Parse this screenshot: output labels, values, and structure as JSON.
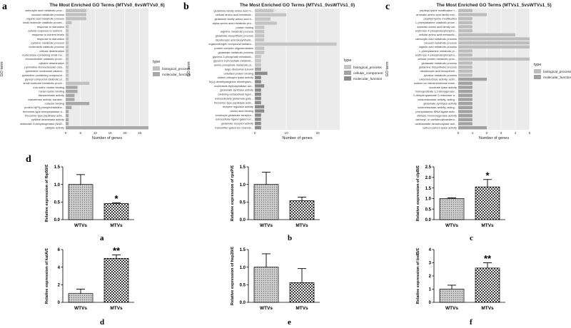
{
  "panel_labels": {
    "a": "a",
    "b": "b",
    "c": "c",
    "d": "d"
  },
  "sub_labels": [
    "a",
    "b",
    "c",
    "d",
    "e",
    "f"
  ],
  "chart_data": [
    {
      "type": "bar",
      "orientation": "horizontal",
      "title": "The Most Enriched GO Terms (MTVs0_6vsWTVs0_6)",
      "xlabel": "Number of genes",
      "ylabel": "GO term",
      "xlim": [
        0,
        28
      ],
      "xticks": [
        0,
        5,
        10,
        15,
        20,
        25
      ],
      "legend": {
        "title": "type",
        "placement": "right",
        "entries": [
          "biological_process",
          "molecular_function"
        ]
      },
      "categories": [
        "carboxylic acid metabolic proc...",
        "oxoacid metabolic process",
        "organic acid metabolic process",
        "small molecule catabolic proces...",
        "response to starvation",
        "cellular response to nutrient...",
        "response to nutrient levels",
        "response to starvation",
        "cysteine metabolic process",
        "nucleoside catabolic process",
        "cellular deamination",
        "nucleobase-containing small mo...",
        "ribonucleotide catabolic proce...",
        "cytidine deamination",
        "pyrimidine ribonucleoside cata...",
        "pyrimidine nucleoside catabol...",
        "pyrimidine-containing compound...",
        "glyoxyl compound catabolic pr...",
        "small molecule metabolic proce...",
        "iron-sulfur cluster binding",
        "metal cluster binding",
        "transaminase activity",
        "transferase activity, transfer...",
        "cofactor binding",
        "protein-N(PI)-phosphohistidine...",
        "threonine-type endopeptidase a...",
        "threonine-type peptidase activ...",
        "cytidine deaminase activity",
        "shikimate 3-dehydrogenase (NAD...",
        "catalytic activity"
      ],
      "values": [
        7,
        7,
        7,
        2,
        1,
        1,
        1,
        1,
        1,
        1,
        1,
        1,
        1,
        1,
        1,
        1,
        1,
        1,
        8,
        4,
        4,
        3,
        3,
        8,
        2,
        1,
        1,
        1,
        1,
        28
      ],
      "types": [
        "biological_process",
        "biological_process",
        "biological_process",
        "biological_process",
        "biological_process",
        "biological_process",
        "biological_process",
        "biological_process",
        "biological_process",
        "biological_process",
        "biological_process",
        "biological_process",
        "biological_process",
        "biological_process",
        "biological_process",
        "biological_process",
        "biological_process",
        "biological_process",
        "biological_process",
        "molecular_function",
        "molecular_function",
        "molecular_function",
        "molecular_function",
        "molecular_function",
        "molecular_function",
        "molecular_function",
        "molecular_function",
        "molecular_function",
        "molecular_function",
        "molecular_function"
      ],
      "colors": {
        "biological_process": "#c0c0c0",
        "molecular_function": "#a8a8a8"
      }
    },
    {
      "type": "bar",
      "orientation": "horizontal",
      "title": "The Most Enriched GO Terms (MTVs1_0vsWTVs1_0)",
      "xlabel": "Number of genes",
      "ylabel": "GO term",
      "xlim": [
        0,
        27
      ],
      "xticks": [
        0,
        10,
        20
      ],
      "legend": {
        "title": "type",
        "placement": "right",
        "entries": [
          "biological_process",
          "cellular_component",
          "molecular_function"
        ]
      },
      "categories": [
        "glutamine family amino acid m...",
        "cellular amino acid metabolic...",
        "glutamine family amino acid b...",
        "alpha-amino acid metabolic pro...",
        "protein folding",
        "arginine metabolic process",
        "glutamate biosynthetic process",
        "dicarboxylic acid biosynthetic...",
        "organonitrogen compound metabo...",
        "protein complex oligomerization",
        "glutamate metabolic process",
        "glycerol-3-phosphate metabolic...",
        "glycerol-3-phosphate catabolic...",
        "amine phosphate metabolic pr...",
        "large ribosomal subunit",
        "unfolded protein binding",
        "carbon-nitrogen lyase activity",
        "N(ω)-dimethylarginine dimethylam...",
        "nucleoside-triphosphatase act...",
        "glutamate synthase activity",
        "oxidizing extracellular ligan...",
        "extracellularly glutamate-gate...",
        "threonine-type peptidase activ...",
        "enzyme regulator activity",
        "amino acid binding",
        "ionotropic glutamate receptor...",
        "extracellular ligand-gated ion...",
        "glutamate receptor activity",
        "transmitter-gated ion channel..."
      ],
      "values": [
        6,
        10,
        5,
        7,
        3,
        3,
        3,
        3,
        26,
        3,
        3,
        2,
        2,
        2,
        2,
        4,
        2,
        2,
        3,
        2,
        2,
        2,
        2,
        3,
        3,
        2,
        2,
        2,
        2
      ],
      "types": [
        "biological_process",
        "biological_process",
        "biological_process",
        "biological_process",
        "biological_process",
        "biological_process",
        "biological_process",
        "biological_process",
        "biological_process",
        "biological_process",
        "biological_process",
        "biological_process",
        "biological_process",
        "biological_process",
        "cellular_component",
        "molecular_function",
        "molecular_function",
        "molecular_function",
        "molecular_function",
        "molecular_function",
        "molecular_function",
        "molecular_function",
        "molecular_function",
        "molecular_function",
        "molecular_function",
        "molecular_function",
        "molecular_function",
        "molecular_function",
        "molecular_function"
      ],
      "colors": {
        "biological_process": "#c4c4c4",
        "cellular_component": "#a4a4a4",
        "molecular_function": "#8c8c8c"
      }
    },
    {
      "type": "bar",
      "orientation": "horizontal",
      "title": "The Most Enriched GO Terms (MTVs1_5vsWTVs1_5)",
      "xlabel": "Number of genes",
      "ylabel": "GO term",
      "xlim": [
        0,
        5
      ],
      "xticks": [
        0,
        1,
        2,
        3,
        4,
        5
      ],
      "legend": {
        "title": "type",
        "placement": "right",
        "entries": [
          "biological_process",
          "molecular_function"
        ]
      },
      "categories": [
        "peptidyl-lysine modification t...",
        "aromatic amino acid family met...",
        "peptidyl-lysine modification",
        "L-phenylalanine catabolic proce...",
        "aromatic amino acid family cat...",
        "erythrose 4-phosphate/phospho...",
        "cellular amino acid metabolic...",
        "carboxylic acid metabolic process",
        "oxoacid metabolic process",
        "organic acid metabolic process",
        "L-phenylalanine metabolic pr...",
        "erythrose 4-phosphate/phospho...",
        "cellular protein metabolic proc...",
        "glutamate metabolic process",
        "glutamine biosynthetic process",
        "dicarboxylic acid biosyntheti...",
        "tyrosine metabolic process",
        "oxidoreductase activity, actin...",
        "sodium ion transmembrane trans...",
        "isocitrate lyase activity",
        "homogentisate 1,2-dioxygenase...",
        "2-dehydropantoate 2-reductase a...",
        "oxidoreductase activity, acting...",
        "glutamate synthase activity",
        "oxidoreductase activity, acting...",
        "phenylalanine-tRNA ligase activ...",
        "nitrilase monooxygenase activity",
        "carboxyl- or carbamoyltransfera...",
        "oxaloacetate decarboxylase acti...",
        "carbon-carbon lyase activity"
      ],
      "values": [
        1,
        2,
        1,
        1,
        1,
        1,
        4,
        5,
        5,
        5,
        1,
        1,
        5,
        1,
        1,
        1,
        1,
        2,
        1,
        1,
        1,
        1,
        1,
        1,
        1,
        1,
        1,
        1,
        1,
        2
      ],
      "types": [
        "biological_process",
        "biological_process",
        "biological_process",
        "biological_process",
        "biological_process",
        "biological_process",
        "biological_process",
        "biological_process",
        "biological_process",
        "biological_process",
        "biological_process",
        "biological_process",
        "biological_process",
        "biological_process",
        "biological_process",
        "biological_process",
        "biological_process",
        "molecular_function",
        "molecular_function",
        "molecular_function",
        "molecular_function",
        "molecular_function",
        "molecular_function",
        "molecular_function",
        "molecular_function",
        "molecular_function",
        "molecular_function",
        "molecular_function",
        "molecular_function",
        "molecular_function"
      ],
      "colors": {
        "biological_process": "#bdbdbd",
        "molecular_function": "#a2a2a2"
      }
    },
    {
      "type": "bar",
      "orientation": "vertical",
      "ylabel": "Relative expression of fbp50/Ɛ",
      "categories": [
        "WTVs",
        "MTVs"
      ],
      "values": [
        1.0,
        0.46
      ],
      "errors": [
        0.28,
        0.02
      ],
      "significance": [
        "",
        "*"
      ],
      "ylim": [
        0,
        1.5
      ],
      "yticks": [
        "0.0",
        "0.5",
        "1.0",
        "1.5"
      ]
    },
    {
      "type": "bar",
      "orientation": "vertical",
      "ylabel": "Relative expression of rpsP/Ɛ",
      "categories": [
        "WTVs",
        "MTVs"
      ],
      "values": [
        1.0,
        0.54
      ],
      "errors": [
        0.35,
        0.1
      ],
      "significance": [
        "",
        ""
      ],
      "ylim": [
        0,
        1.5
      ],
      "yticks": [
        "0.0",
        "0.5",
        "1.0",
        "1.5"
      ]
    },
    {
      "type": "bar",
      "orientation": "vertical",
      "ylabel": "Relative expression of clpB/Ɛ",
      "categories": [
        "WTVs",
        "MTVs"
      ],
      "values": [
        1.0,
        1.55
      ],
      "errors": [
        0.03,
        0.35
      ],
      "significance": [
        "",
        "*"
      ],
      "ylim": [
        0,
        2.5
      ],
      "yticks": [
        "0.0",
        "0.5",
        "1.0",
        "1.5",
        "2.0",
        "2.5"
      ]
    },
    {
      "type": "bar",
      "orientation": "vertical",
      "ylabel": "Relative expression of katA/Ɛ",
      "categories": [
        "WTVs",
        "MTVs"
      ],
      "values": [
        1.0,
        5.0
      ],
      "errors": [
        0.5,
        0.4
      ],
      "significance": [
        "",
        "**"
      ],
      "ylim": [
        0,
        6
      ],
      "yticks": [
        "0",
        "2",
        "4",
        "6"
      ]
    },
    {
      "type": "bar",
      "orientation": "vertical",
      "ylabel": "Relative expression of hsp20/Ɛ",
      "categories": [
        "WTVs",
        "MTVs"
      ],
      "values": [
        1.0,
        0.56
      ],
      "errors": [
        0.38,
        0.4
      ],
      "significance": [
        "",
        ""
      ],
      "ylim": [
        0,
        1.5
      ],
      "yticks": [
        "0.0",
        "0.5",
        "1.0",
        "1.5"
      ]
    },
    {
      "type": "bar",
      "orientation": "vertical",
      "ylabel": "Relative expression of lodB/Ɛ",
      "categories": [
        "WTVs",
        "MTVs"
      ],
      "values": [
        1.0,
        2.6
      ],
      "errors": [
        0.3,
        0.4
      ],
      "significance": [
        "",
        "**"
      ],
      "ylim": [
        0,
        4
      ],
      "yticks": [
        "0",
        "1",
        "2",
        "3",
        "4"
      ]
    }
  ]
}
